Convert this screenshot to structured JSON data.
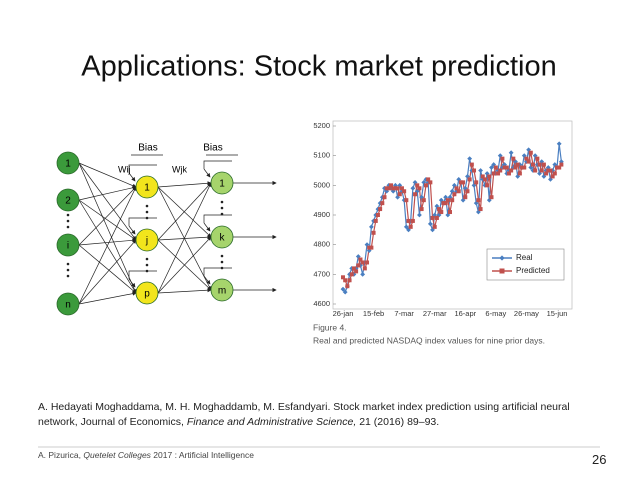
{
  "slide": {
    "title": "Applications: Stock market prediction",
    "citation": [
      "A. Hedayati Moghaddama, M. H. Moghaddamb, M. Esfandyari. Stock market index prediction using artificial neural network, Journal of Economics, ",
      "Finance and Administrative Science,",
      " 21 (2016) 89–93."
    ],
    "footer": [
      "A. Pizurica, ",
      "Quetelet Colleges",
      " 2017 : Artificial Intelligence"
    ],
    "page_number": "26"
  },
  "diagram": {
    "inputs": [
      "1",
      "2",
      "i",
      "n"
    ],
    "hidden": [
      "1",
      "j",
      "p"
    ],
    "outputs": [
      "1",
      "k",
      "m"
    ],
    "weights_in": "Wij",
    "weights_out": "Wjk",
    "bias_hidden": "Bias",
    "bias_output": "Bias"
  },
  "chart_data": {
    "type": "line",
    "figure_label": "Figure 4.",
    "caption": "Real and predicted NASDAQ index values for nine prior days.",
    "categories": [
      "26-jan",
      null,
      null,
      null,
      null,
      null,
      null,
      null,
      null,
      null,
      null,
      null,
      null,
      null,
      "15-feb",
      null,
      null,
      null,
      null,
      null,
      null,
      null,
      null,
      null,
      null,
      null,
      null,
      null,
      "7-mar",
      null,
      null,
      null,
      null,
      null,
      null,
      null,
      null,
      null,
      null,
      null,
      null,
      null,
      "27-mar",
      null,
      null,
      null,
      null,
      null,
      null,
      null,
      null,
      null,
      null,
      null,
      null,
      null,
      "16-apr",
      null,
      null,
      null,
      null,
      null,
      null,
      null,
      null,
      null,
      null,
      null,
      null,
      null,
      "6-may",
      null,
      null,
      null,
      null,
      null,
      null,
      null,
      null,
      null,
      null,
      null,
      null,
      null,
      "26-may",
      null,
      null,
      null,
      null,
      null,
      null,
      null,
      null,
      null,
      null,
      null,
      null,
      null,
      "15-jun",
      null,
      null
    ],
    "series": [
      {
        "name": "Real",
        "color": "#4a7fc1",
        "marker": "diamond",
        "values": [
          4650,
          4640,
          4660,
          4700,
          4720,
          4700,
          4720,
          4760,
          4730,
          4700,
          4740,
          4800,
          4780,
          4860,
          4880,
          4900,
          4920,
          4940,
          4960,
          4990,
          4980,
          5000,
          4990,
          4980,
          5000,
          4960,
          5000,
          4980,
          4950,
          4860,
          4850,
          4880,
          4990,
          5010,
          4980,
          4900,
          4960,
          5010,
          5020,
          5010,
          4870,
          4850,
          4900,
          4930,
          4900,
          4950,
          4940,
          4960,
          4900,
          4960,
          4980,
          5000,
          4980,
          5020,
          5010,
          4950,
          4990,
          5030,
          5090,
          5050,
          5000,
          4940,
          4910,
          5050,
          5020,
          5000,
          5040,
          4950,
          5060,
          5070,
          5040,
          5050,
          5100,
          5060,
          5070,
          5040,
          5050,
          5110,
          5060,
          5080,
          5030,
          5070,
          5060,
          5100,
          5080,
          5120,
          5060,
          5050,
          5100,
          5070,
          5040,
          5080,
          5030,
          5050,
          5060,
          5020,
          5050,
          5070,
          5060,
          5140,
          5080
        ]
      },
      {
        "name": "Predicted",
        "color": "#c0504d",
        "marker": "square",
        "values": [
          4690,
          4680,
          4660,
          4680,
          4700,
          4720,
          4710,
          4730,
          4750,
          4740,
          4720,
          4740,
          4790,
          4790,
          4840,
          4880,
          4900,
          4920,
          4940,
          4960,
          4990,
          4990,
          5000,
          4990,
          4990,
          4990,
          4970,
          4990,
          4980,
          4950,
          4880,
          4860,
          4880,
          4970,
          5000,
          4990,
          4920,
          4950,
          5000,
          5020,
          5010,
          4890,
          4860,
          4890,
          4920,
          4910,
          4940,
          4940,
          4950,
          4910,
          4950,
          4970,
          4990,
          4980,
          5010,
          5010,
          4960,
          4980,
          5020,
          5070,
          5050,
          5010,
          4950,
          4920,
          5030,
          5020,
          5000,
          5030,
          4960,
          5040,
          5060,
          5040,
          5050,
          5090,
          5060,
          5060,
          5040,
          5050,
          5090,
          5060,
          5070,
          5040,
          5060,
          5060,
          5090,
          5080,
          5110,
          5070,
          5050,
          5090,
          5070,
          5050,
          5070,
          5040,
          5050,
          5050,
          5030,
          5040,
          5060,
          5060,
          5070
        ]
      }
    ],
    "ylim": [
      4600,
      5200
    ],
    "yticks": [
      4600,
      4700,
      4800,
      4900,
      5000,
      5100,
      5200
    ],
    "legend": "lower right",
    "grid": false
  }
}
